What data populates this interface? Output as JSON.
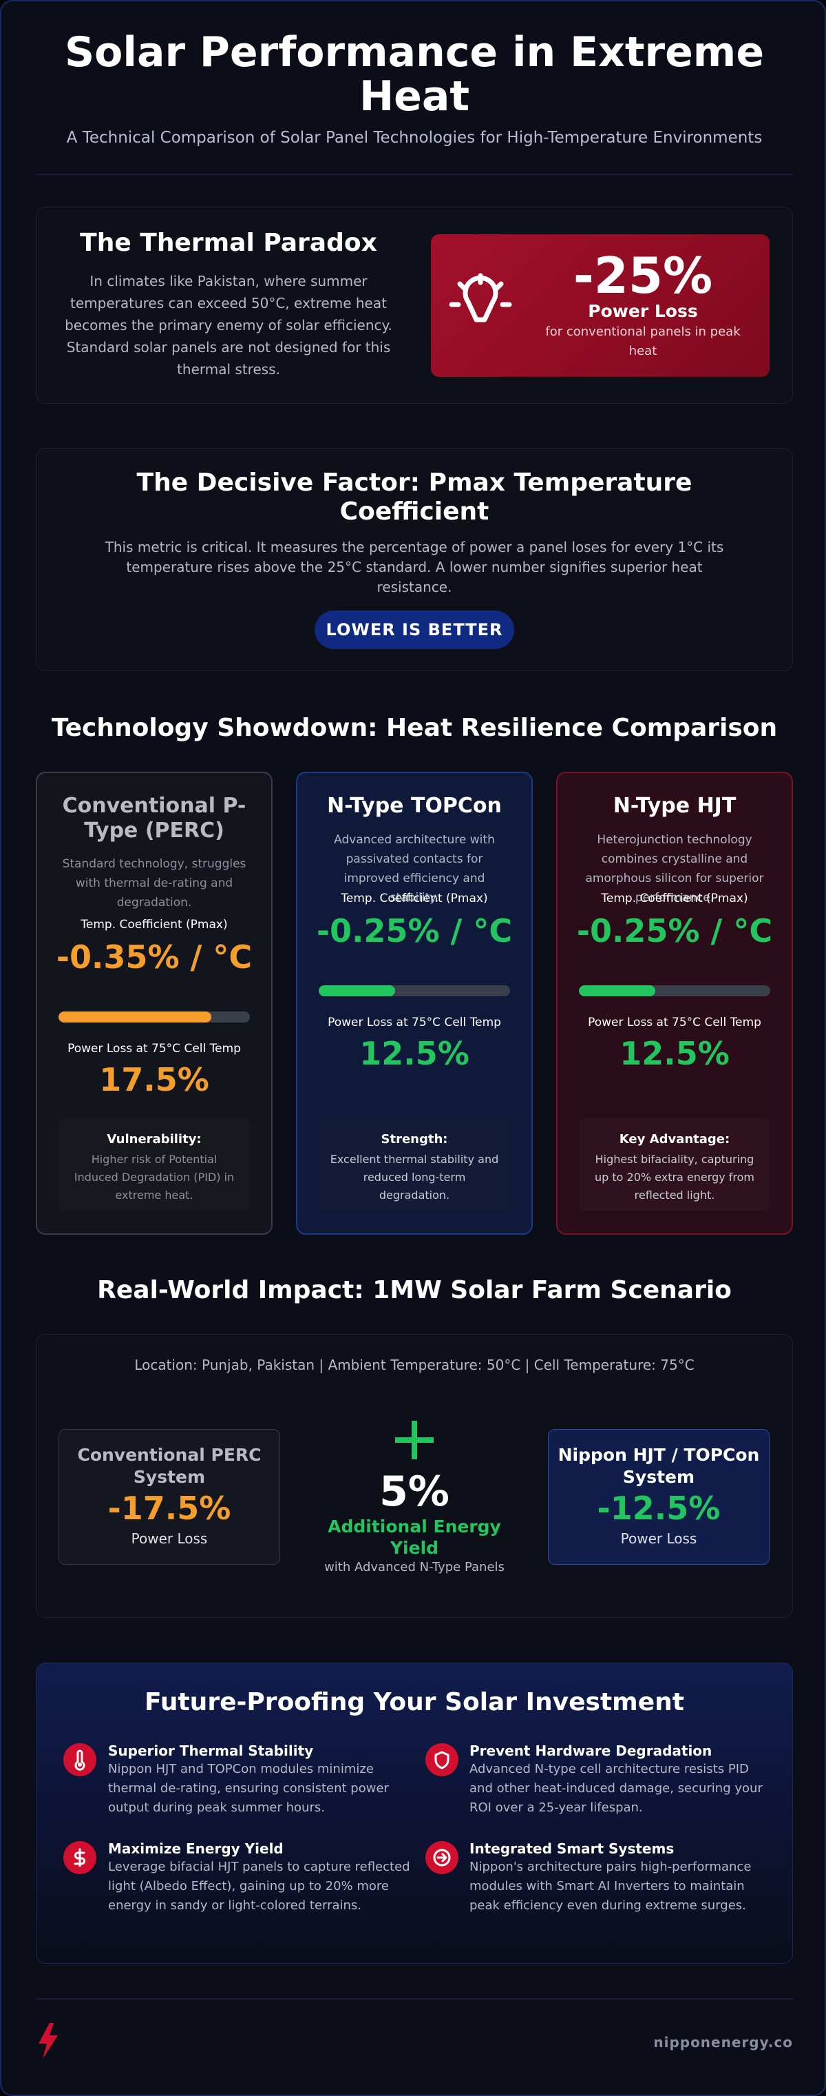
{
  "header": {
    "title": "Solar Performance in Extreme Heat",
    "subtitle": "A Technical Comparison of Solar Panel Technologies for High-Temperature Environments"
  },
  "thermal_paradox": {
    "title": "The Thermal Paradox",
    "text": "In climates like Pakistan, where summer temperatures can exceed 50°C, extreme heat becomes the primary enemy of solar efficiency. Standard solar panels are not designed for this thermal stress.",
    "stat_value": "-25%",
    "stat_label": "Power Loss",
    "stat_sub": "for conventional panels in peak heat",
    "icon": "sun-icon"
  },
  "decisive_factor": {
    "title": "The Decisive Factor: Pmax Temperature Coefficient",
    "text": "This metric is critical. It measures the percentage of power a panel loses for every 1°C its temperature rises above the 25°C standard. A lower number signifies superior heat resistance.",
    "badge": "LOWER IS BETTER"
  },
  "showdown": {
    "title": "Technology Showdown: Heat Resilience Comparison",
    "cards": [
      {
        "title": "Conventional P-Type (PERC)",
        "desc": "Standard technology, struggles with thermal de-rating and degradation.",
        "coef_label": "Temp. Coefficient (Pmax)",
        "coef_value": "-0.35% / °C",
        "bar_fraction": 0.8,
        "loss_label": "Power Loss at 75°C Cell Temp",
        "loss_value": "17.5%",
        "box_head": "Vulnerability:",
        "box_text": "Higher risk of Potential Induced Degradation (PID) in extreme heat."
      },
      {
        "title": "N-Type TOPCon",
        "desc": "Advanced architecture with passivated contacts for improved efficiency and stability.",
        "coef_label": "Temp. Coefficient (Pmax)",
        "coef_value": "-0.25% / °C",
        "bar_fraction": 0.4,
        "loss_label": "Power Loss at 75°C Cell Temp",
        "loss_value": "12.5%",
        "box_head": "Strength:",
        "box_text": "Excellent thermal stability and reduced long-term degradation."
      },
      {
        "title": "N-Type HJT",
        "desc": "Heterojunction technology combines crystalline and amorphous silicon for superior performance.",
        "coef_label": "Temp. Coefficient (Pmax)",
        "coef_value": "-0.25% / °C",
        "bar_fraction": 0.4,
        "loss_label": "Power Loss at 75°C Cell Temp",
        "loss_value": "12.5%",
        "box_head": "Key Advantage:",
        "box_text": "Highest bifaciality, capturing up to 20% extra energy from reflected light."
      }
    ]
  },
  "impact": {
    "title": "Real-World Impact: 1MW Solar Farm Scenario",
    "location": "Location: Punjab, Pakistan | Ambient Temperature: 50°C | Cell Temperature: 75°C",
    "left_title": "Conventional PERC System",
    "left_value": "-17.5%",
    "left_sub": "Power Loss",
    "mid_value": "5%",
    "mid_label": "Additional Energy Yield",
    "mid_sub": "with Advanced N-Type Panels",
    "right_title": "Nippon HJT / TOPCon System",
    "right_value": "-12.5%",
    "right_sub": "Power Loss"
  },
  "future": {
    "title": "Future-Proofing Your Solar Investment",
    "items": [
      {
        "head": "Superior Thermal Stability",
        "text": "Nippon HJT and TOPCon modules minimize thermal de-rating, ensuring consistent power output during peak summer hours.",
        "icon": "thermometer-icon"
      },
      {
        "head": "Prevent Hardware Degradation",
        "text": "Advanced N-type cell architecture resists PID and other heat-induced damage, securing your ROI over a 25-year lifespan.",
        "icon": "shield-icon"
      },
      {
        "head": "Maximize Energy Yield",
        "text": "Leverage bifacial HJT panels to capture reflected light (Albedo Effect), gaining up to 20% more energy in sandy or light-colored terrains.",
        "icon": "dollar-icon"
      },
      {
        "head": "Integrated Smart Systems",
        "text": "Nippon's architecture pairs high-performance modules with Smart AI Inverters to maintain peak efficiency even during extreme surges.",
        "icon": "arrow-right-icon"
      }
    ]
  },
  "footer": {
    "url": "nipponenergy.co",
    "logo_icon": "lightning-icon"
  },
  "colors": {
    "accent_red": "#d0102e",
    "orange": "#f59e2c",
    "green": "#22c55e",
    "navy": "#102a82"
  }
}
